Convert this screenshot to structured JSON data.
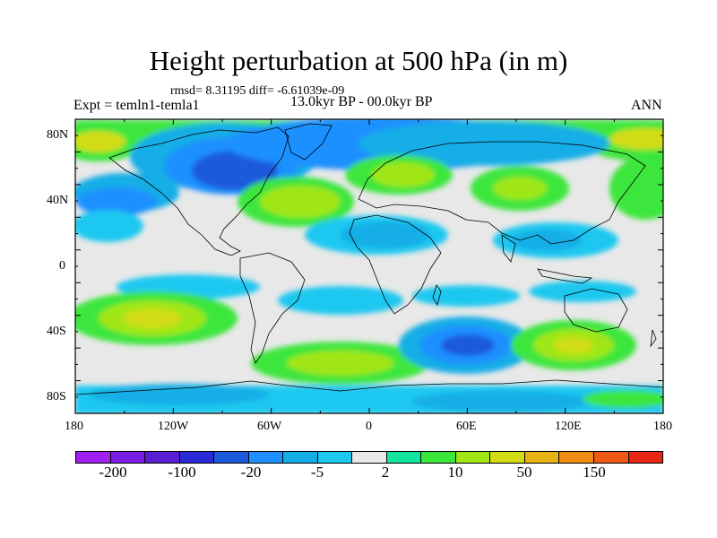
{
  "title": "Height perturbation at 500 hPa (in m)",
  "stats": "rmsd= 8.31195 diff= -6.61039e-09",
  "experiment": "Expt = temln1-temla1",
  "period": "13.0kyr BP - 00.0kyr BP",
  "season": "ANN",
  "axes": {
    "lat_ticks": [
      "80N",
      "40N",
      "0",
      "40S",
      "80S"
    ],
    "lon_ticks": [
      "180",
      "120W",
      "60W",
      "0",
      "60E",
      "120E",
      "180"
    ]
  },
  "colorbar": {
    "colors": [
      "#a020f0",
      "#7a1ee6",
      "#5a1ed2",
      "#2a2ad6",
      "#1c5adc",
      "#1e90ff",
      "#14aee6",
      "#1ec8f0",
      "#e8e8e8",
      "#10e6a0",
      "#3ce63c",
      "#a0e614",
      "#d2dc14",
      "#e6b414",
      "#ee8c14",
      "#ee5a14",
      "#e62814"
    ],
    "labels": [
      "-200",
      "-100",
      "-20",
      "-5",
      "2",
      "10",
      "50",
      "150"
    ]
  }
}
